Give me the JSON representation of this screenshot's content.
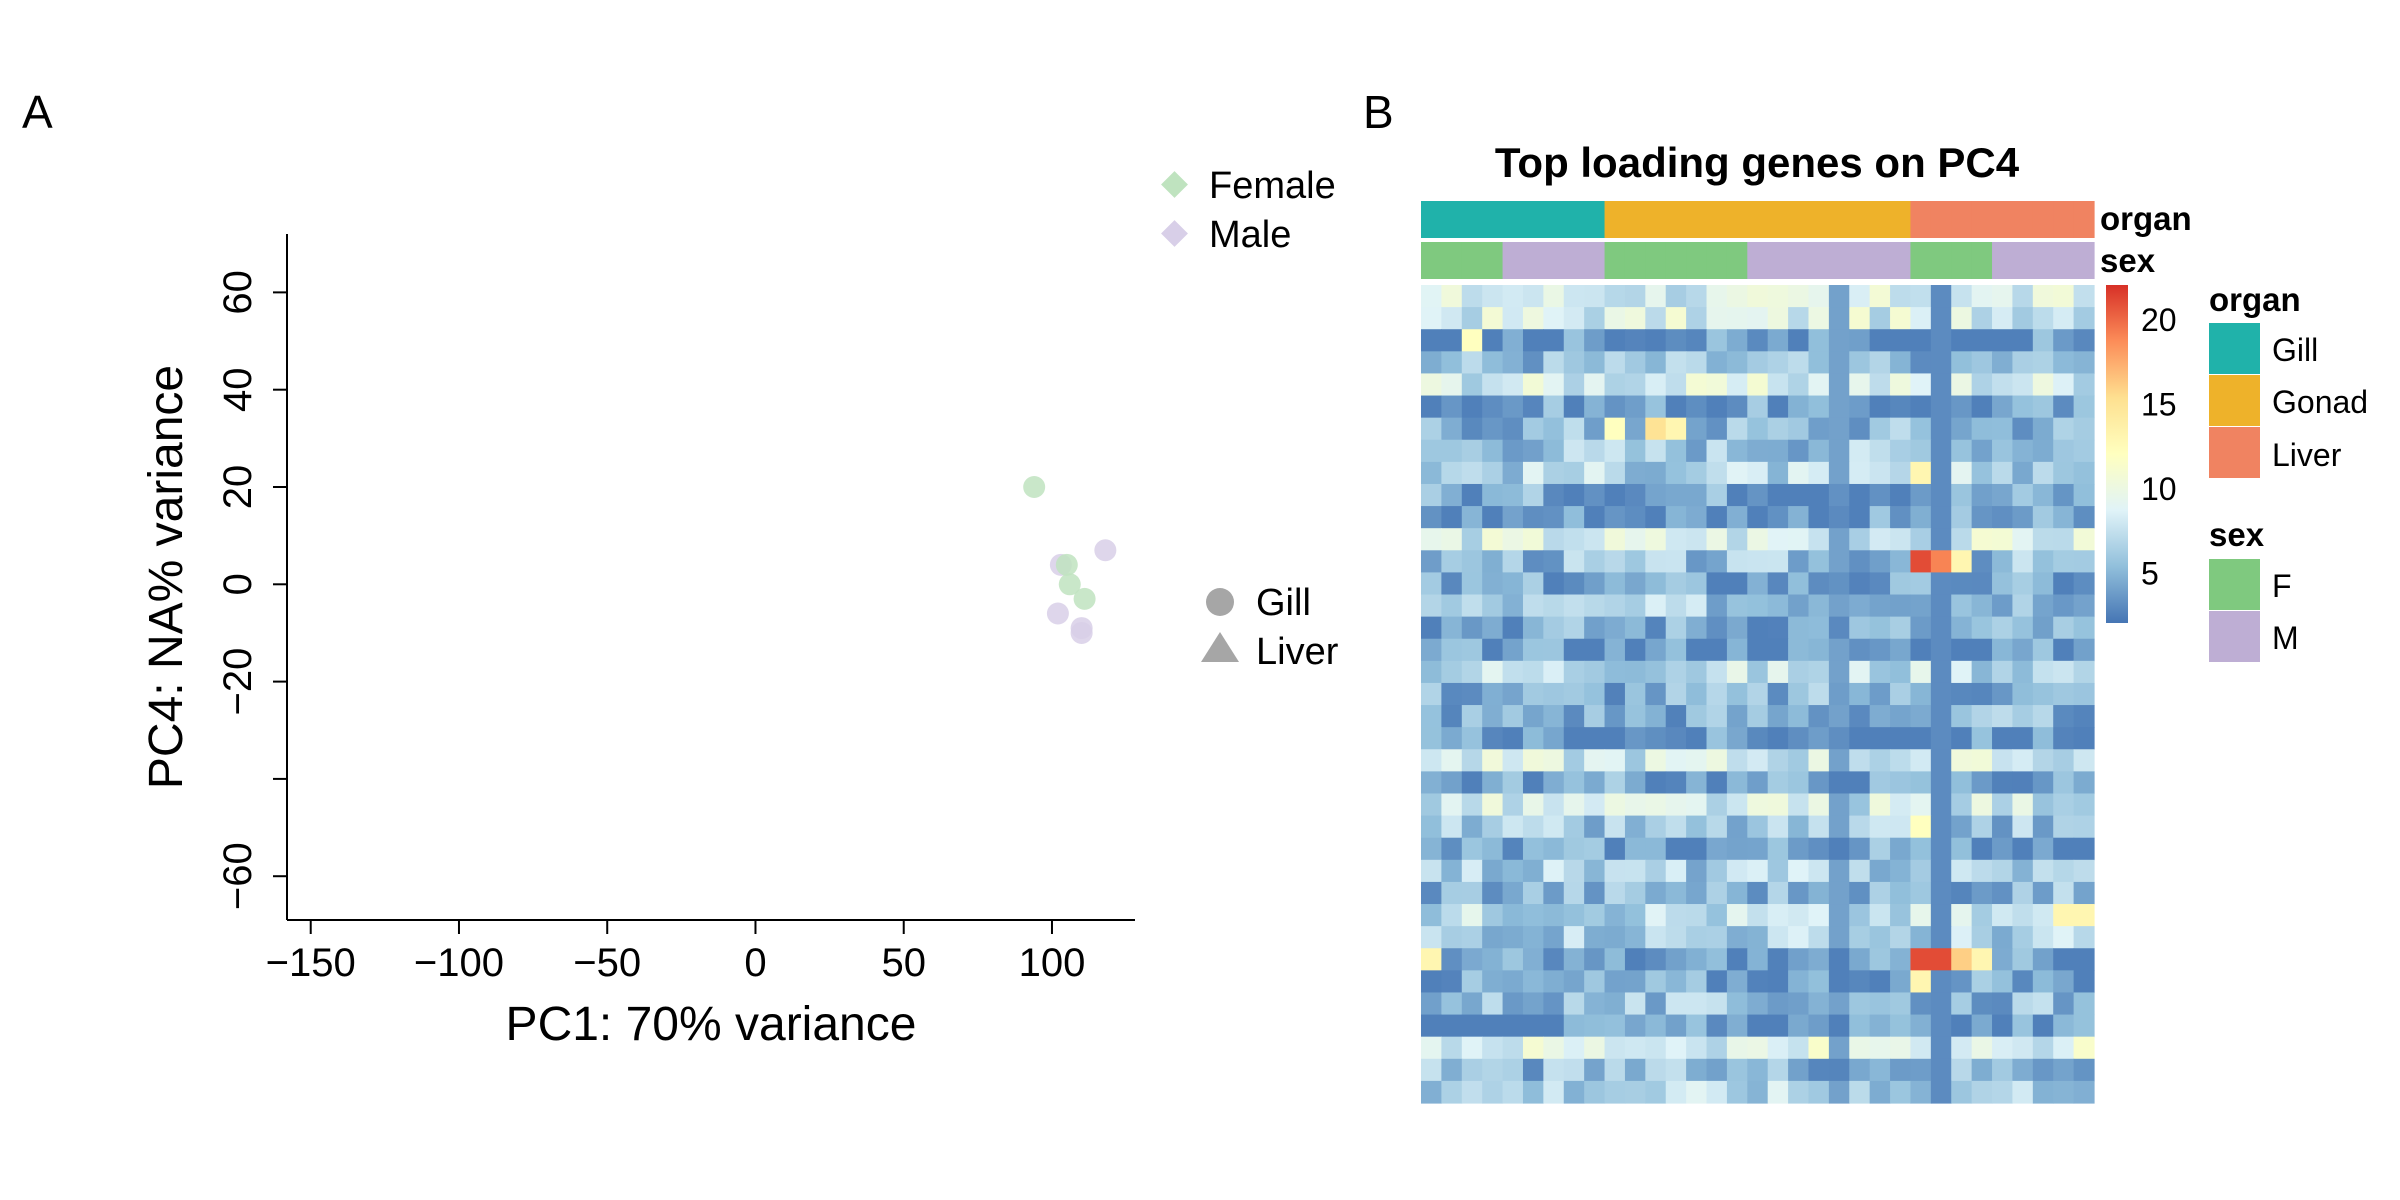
{
  "panels": {
    "a": {
      "label": "A"
    },
    "b": {
      "label": "B"
    }
  },
  "chart_data": [
    {
      "type": "scatter",
      "title": "",
      "xlabel": "PC1: 70% variance",
      "ylabel": "PC4: NA% variance",
      "xlim": [
        -158,
        128
      ],
      "ylim": [
        -69,
        72
      ],
      "xticks": [
        -150,
        -100,
        -50,
        0,
        50,
        100
      ],
      "xtick_labels": [
        "−150",
        "−100",
        "−50",
        "0",
        "50",
        "100"
      ],
      "yticks": [
        -60,
        -40,
        -20,
        0,
        20,
        40,
        60
      ],
      "ytick_labels": [
        "−60",
        "",
        "−20",
        "0",
        "20",
        "40",
        "60"
      ],
      "grid": false,
      "legend_sex": {
        "items": [
          {
            "name": "Female",
            "color": "#bfe3bf"
          },
          {
            "name": "Male",
            "color": "#d8cfe8"
          }
        ],
        "position": "top-right"
      },
      "legend_organ": {
        "items": [
          {
            "name": "Gill",
            "shape": "circle"
          },
          {
            "name": "Liver",
            "shape": "triangle"
          }
        ],
        "position": "right"
      },
      "points": [
        {
          "x": 94,
          "y": 20,
          "sex": "Female"
        },
        {
          "x": 103,
          "y": 4,
          "sex": "Male"
        },
        {
          "x": 105,
          "y": 4,
          "sex": "Female"
        },
        {
          "x": 106,
          "y": 0,
          "sex": "Female"
        },
        {
          "x": 111,
          "y": -3,
          "sex": "Female"
        },
        {
          "x": 118,
          "y": 7,
          "sex": "Male"
        },
        {
          "x": 102,
          "y": -6,
          "sex": "Male"
        },
        {
          "x": 110,
          "y": -9,
          "sex": "Male"
        },
        {
          "x": 110,
          "y": -10,
          "sex": "Male"
        }
      ]
    },
    {
      "type": "heatmap",
      "title": "Top loading genes on PC4",
      "annotation_rows": [
        "organ",
        "sex"
      ],
      "columns": [
        {
          "organ": "Gill",
          "sex": "F"
        },
        {
          "organ": "Gill",
          "sex": "F"
        },
        {
          "organ": "Gill",
          "sex": "F"
        },
        {
          "organ": "Gill",
          "sex": "F"
        },
        {
          "organ": "Gill",
          "sex": "M"
        },
        {
          "organ": "Gill",
          "sex": "M"
        },
        {
          "organ": "Gill",
          "sex": "M"
        },
        {
          "organ": "Gill",
          "sex": "M"
        },
        {
          "organ": "Gill",
          "sex": "M"
        },
        {
          "organ": "Gonad",
          "sex": "F"
        },
        {
          "organ": "Gonad",
          "sex": "F"
        },
        {
          "organ": "Gonad",
          "sex": "F"
        },
        {
          "organ": "Gonad",
          "sex": "F"
        },
        {
          "organ": "Gonad",
          "sex": "F"
        },
        {
          "organ": "Gonad",
          "sex": "F"
        },
        {
          "organ": "Gonad",
          "sex": "F"
        },
        {
          "organ": "Gonad",
          "sex": "M"
        },
        {
          "organ": "Gonad",
          "sex": "M"
        },
        {
          "organ": "Gonad",
          "sex": "M"
        },
        {
          "organ": "Gonad",
          "sex": "M"
        },
        {
          "organ": "Gonad",
          "sex": "M"
        },
        {
          "organ": "Gonad",
          "sex": "M"
        },
        {
          "organ": "Gonad",
          "sex": "M"
        },
        {
          "organ": "Gonad",
          "sex": "M"
        },
        {
          "organ": "Liver",
          "sex": "F"
        },
        {
          "organ": "Liver",
          "sex": "F"
        },
        {
          "organ": "Liver",
          "sex": "F"
        },
        {
          "organ": "Liver",
          "sex": "F"
        },
        {
          "organ": "Liver",
          "sex": "M"
        },
        {
          "organ": "Liver",
          "sex": "M"
        },
        {
          "organ": "Liver",
          "sex": "M"
        },
        {
          "organ": "Liver",
          "sex": "M"
        },
        {
          "organ": "Liver",
          "sex": "M"
        }
      ],
      "num_rows": 37,
      "scale": {
        "min": 2,
        "max": 22,
        "ticks": [
          5,
          10,
          15,
          20
        ],
        "colors": [
          "#4575b4",
          "#91bfdb",
          "#e0f3f8",
          "#ffffbf",
          "#fee090",
          "#fc8d59",
          "#d73027"
        ]
      },
      "legend_organ": {
        "title": "organ",
        "items": [
          {
            "name": "Gill",
            "color": "#20b2aa"
          },
          {
            "name": "Gonad",
            "color": "#eeb22a"
          },
          {
            "name": "Liver",
            "color": "#f08361"
          }
        ]
      },
      "legend_sex": {
        "title": "sex",
        "items": [
          {
            "name": "F",
            "color": "#7fc97f"
          },
          {
            "name": "M",
            "color": "#beaed4"
          }
        ]
      },
      "highlights": [
        {
          "row": 12,
          "col": 24,
          "value": 21
        },
        {
          "row": 12,
          "col": 25,
          "value": 19
        },
        {
          "row": 12,
          "col": 26,
          "value": 13
        },
        {
          "row": 30,
          "col": 24,
          "value": 21
        },
        {
          "row": 30,
          "col": 25,
          "value": 21
        },
        {
          "row": 30,
          "col": 26,
          "value": 16
        },
        {
          "row": 30,
          "col": 27,
          "value": 13
        },
        {
          "row": 31,
          "col": 24,
          "value": 13
        },
        {
          "row": 8,
          "col": 24,
          "value": 13
        },
        {
          "row": 24,
          "col": 24,
          "value": 12
        },
        {
          "row": 6,
          "col": 9,
          "value": 12
        },
        {
          "row": 6,
          "col": 11,
          "value": 15
        },
        {
          "row": 6,
          "col": 12,
          "value": 13
        },
        {
          "row": 2,
          "col": 2,
          "value": 12
        },
        {
          "row": 28,
          "col": 31,
          "value": 13
        },
        {
          "row": 28,
          "col": 32,
          "value": 13
        },
        {
          "row": 30,
          "col": 0,
          "value": 13
        }
      ]
    }
  ]
}
